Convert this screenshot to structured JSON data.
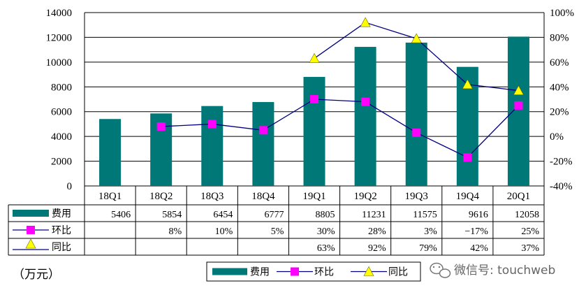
{
  "chart_data": {
    "type": "bar",
    "categories": [
      "18Q1",
      "18Q2",
      "18Q3",
      "18Q4",
      "19Q1",
      "19Q2",
      "19Q3",
      "19Q4",
      "20Q1"
    ],
    "series": [
      {
        "name": "费用",
        "kind": "bar",
        "axis": "left",
        "values": [
          5406,
          5854,
          6454,
          6777,
          8805,
          11231,
          11575,
          9616,
          12058
        ],
        "labels": [
          "5406",
          "5854",
          "6454",
          "6777",
          "8805",
          "11231",
          "11575",
          "9616",
          "12058"
        ]
      },
      {
        "name": "环比",
        "kind": "line",
        "axis": "right",
        "values": [
          null,
          8,
          10,
          5,
          30,
          28,
          3,
          -17,
          25
        ],
        "labels": [
          "",
          "8%",
          "10%",
          "5%",
          "30%",
          "28%",
          "3%",
          "−17%",
          "25%"
        ]
      },
      {
        "name": "同比",
        "kind": "line",
        "axis": "right",
        "values": [
          null,
          null,
          null,
          null,
          63,
          92,
          79,
          42,
          37
        ],
        "labels": [
          "",
          "",
          "",
          "",
          "63%",
          "92%",
          "79%",
          "42%",
          "37%"
        ]
      }
    ],
    "ylim": [
      0,
      14000
    ],
    "yticks": [
      "0",
      "2000",
      "4000",
      "6000",
      "8000",
      "10000",
      "12000",
      "14000"
    ],
    "y2lim": [
      -40,
      100
    ],
    "y2ticks": [
      "-40%",
      "-20%",
      "0%",
      "20%",
      "40%",
      "60%",
      "80%",
      "100%"
    ],
    "unit_label": "（万元）",
    "colors": {
      "bar": "#007878",
      "mom": "#ff00ff",
      "yoy": "#ffff00",
      "line": "#000080"
    },
    "legend_position": "bottom-center"
  },
  "watermark": "微信号: touchweb"
}
